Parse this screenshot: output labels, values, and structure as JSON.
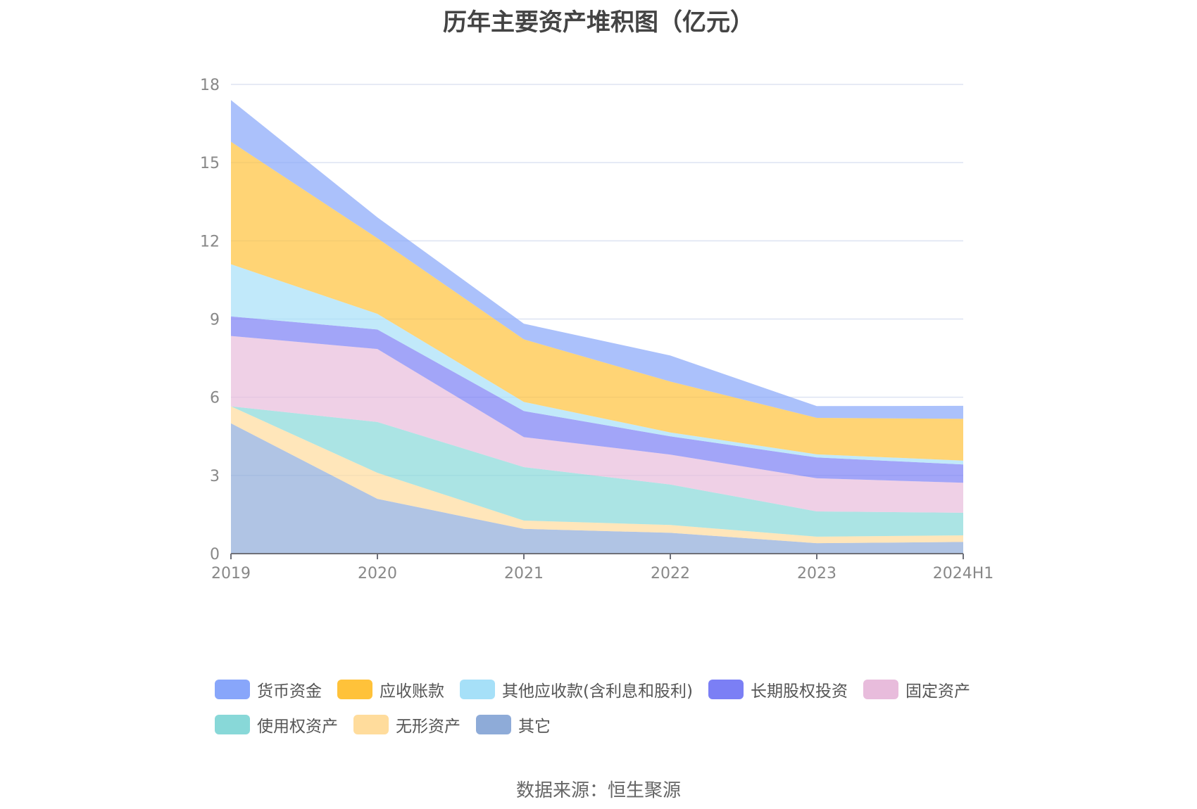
{
  "chart_data": {
    "type": "area",
    "stacked": true,
    "title": "历年主要资产堆积图（亿元）",
    "source": "数据来源：恒生聚源",
    "x": [
      "2019",
      "2020",
      "2021",
      "2022",
      "2023",
      "2024H1"
    ],
    "ylim": [
      0,
      18
    ],
    "yticks": [
      0,
      3,
      6,
      9,
      12,
      15,
      18
    ],
    "grid": true,
    "legend_position": "bottom",
    "series": [
      {
        "name": "其它",
        "color": "#8eabd8",
        "values": [
          5.0,
          2.1,
          0.95,
          0.8,
          0.4,
          0.45
        ]
      },
      {
        "name": "无形资产",
        "color": "#ffdc9c",
        "values": [
          0.65,
          1.0,
          0.32,
          0.3,
          0.25,
          0.25
        ]
      },
      {
        "name": "使用权资产",
        "color": "#88d8d8",
        "values": [
          0.0,
          1.95,
          2.05,
          1.55,
          0.97,
          0.87
        ]
      },
      {
        "name": "固定资产",
        "color": "#e8bcdc",
        "values": [
          2.7,
          2.8,
          1.15,
          1.15,
          1.27,
          1.15
        ]
      },
      {
        "name": "长期股权投资",
        "color": "#7b7ff5",
        "values": [
          0.75,
          0.75,
          1.0,
          0.7,
          0.8,
          0.7
        ]
      },
      {
        "name": "其他应收款(含利息和股利)",
        "color": "#a6e0f8",
        "values": [
          2.0,
          0.6,
          0.35,
          0.15,
          0.12,
          0.15
        ]
      },
      {
        "name": "应收账款",
        "color": "#ffc23a",
        "values": [
          4.7,
          2.9,
          2.4,
          1.95,
          1.4,
          1.6
        ]
      },
      {
        "name": "货币资金",
        "color": "#88a6fa",
        "values": [
          1.6,
          0.8,
          0.6,
          1.0,
          0.45,
          0.5
        ]
      }
    ],
    "legend_order": [
      "货币资金",
      "应收账款",
      "其他应收款(含利息和股利)",
      "长期股权投资",
      "固定资产",
      "使用权资产",
      "无形资产",
      "其它"
    ]
  }
}
